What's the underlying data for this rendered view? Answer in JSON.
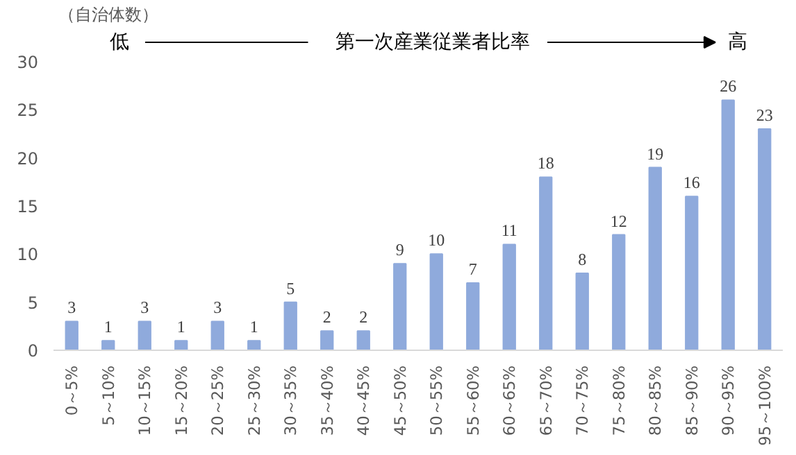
{
  "chart_data": {
    "type": "bar",
    "ylabel": "（自治体数）",
    "annotations": [
      "低",
      "第一次産業従業者比率",
      "高"
    ],
    "categories": [
      "0～5%",
      "5～10%",
      "10～15%",
      "15～20%",
      "20～25%",
      "25～30%",
      "30～35%",
      "35～40%",
      "40～45%",
      "45～50%",
      "50～55%",
      "55～60%",
      "60～65%",
      "65～70%",
      "70～75%",
      "75～80%",
      "80～85%",
      "85～90%",
      "90～95%",
      "95～100%"
    ],
    "values": [
      3,
      1,
      3,
      1,
      3,
      1,
      5,
      2,
      2,
      9,
      10,
      7,
      11,
      18,
      8,
      12,
      19,
      16,
      26,
      23
    ],
    "color": "#8faadc",
    "ylim": [
      0,
      30
    ],
    "yticks": [
      0,
      5,
      10,
      15,
      20,
      25,
      30
    ],
    "data_labels": true,
    "grid": false
  }
}
